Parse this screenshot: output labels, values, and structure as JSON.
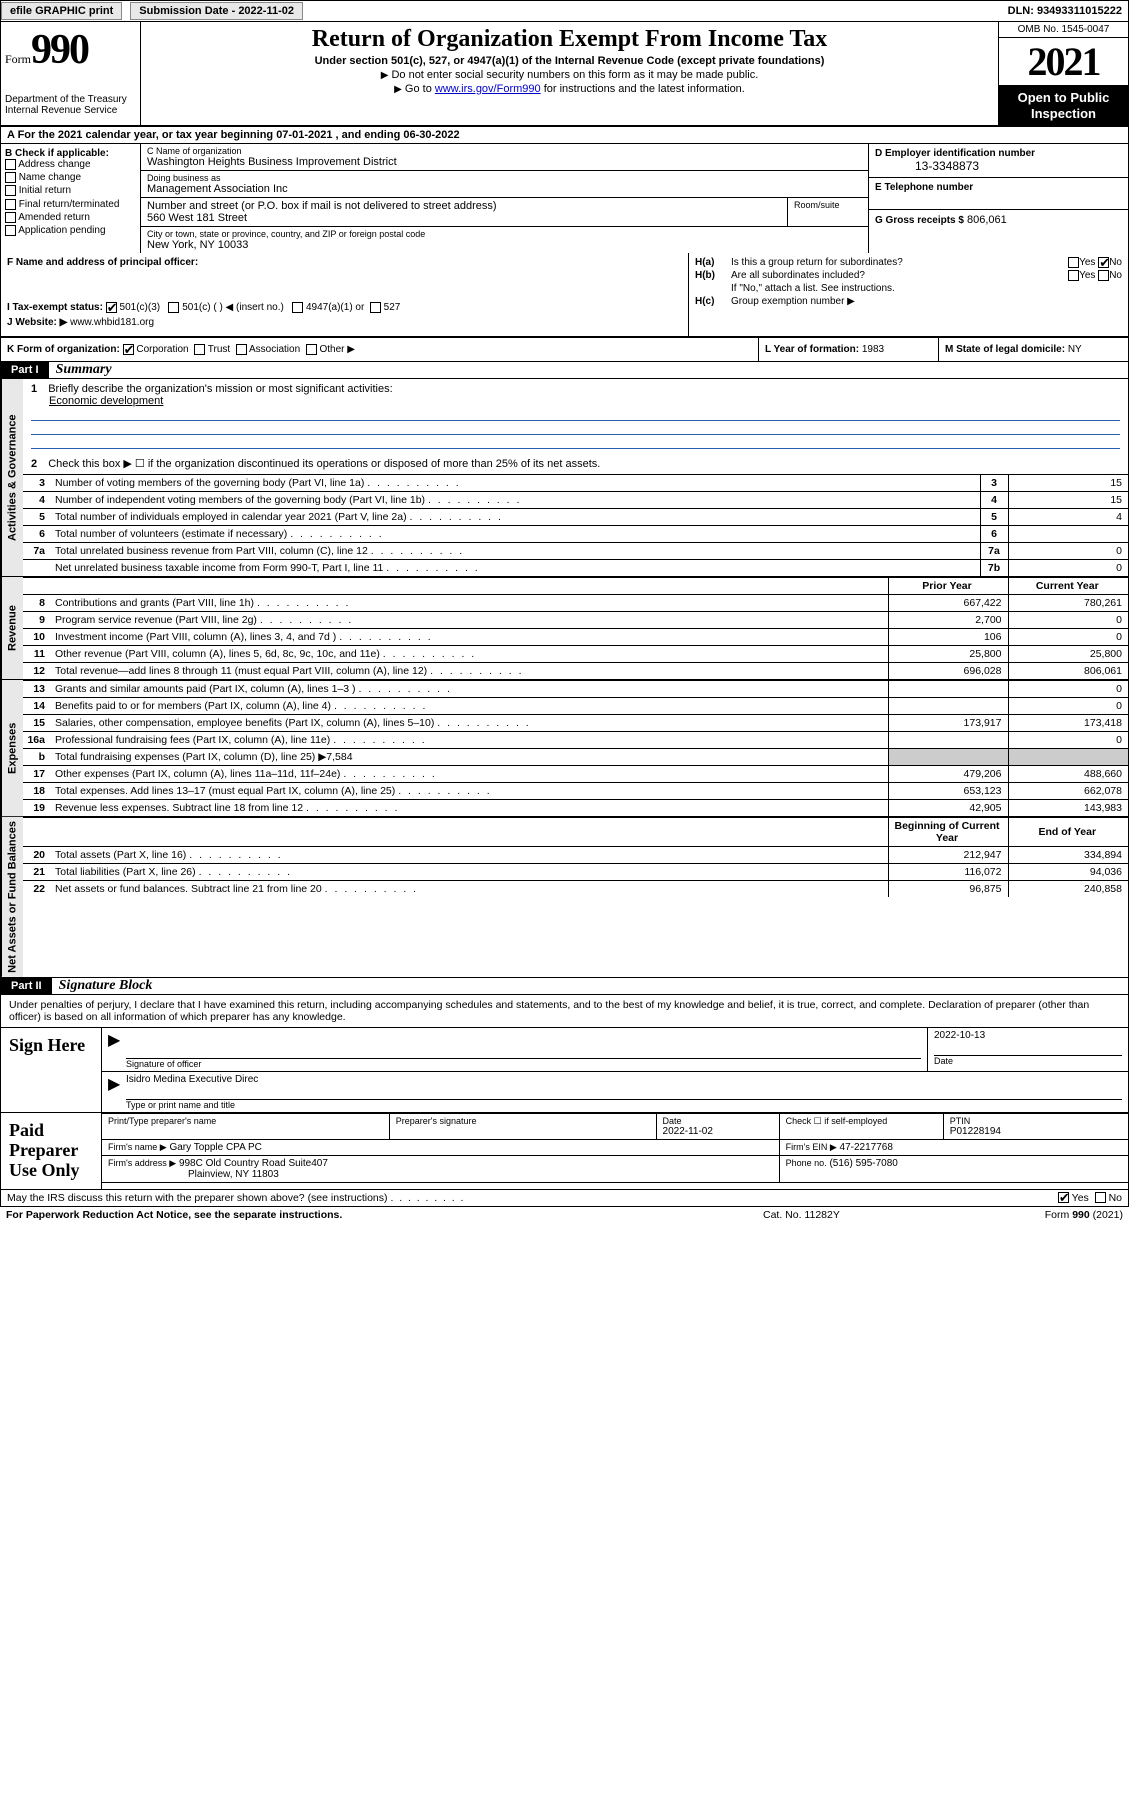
{
  "topbar": {
    "efile": "efile GRAPHIC print",
    "sub_date_lbl": "Submission Date - 2022-11-02",
    "dln": "DLN: 93493311015222"
  },
  "header": {
    "form_prefix": "Form",
    "form_num": "990",
    "dept": "Department of the Treasury",
    "irs": "Internal Revenue Service",
    "title": "Return of Organization Exempt From Income Tax",
    "sub": "Under section 501(c), 527, or 4947(a)(1) of the Internal Revenue Code (except private foundations)",
    "note1": "Do not enter social security numbers on this form as it may be made public.",
    "note2_a": "Go to ",
    "note2_link": "www.irs.gov/Form990",
    "note2_b": " for instructions and the latest information.",
    "omb": "OMB No. 1545-0047",
    "year": "2021",
    "open_pub_1": "Open to Public",
    "open_pub_2": "Inspection"
  },
  "rowA": "A For the 2021 calendar year, or tax year beginning 07-01-2021   , and ending 06-30-2022",
  "sectionB": {
    "lead": "B Check if applicable:",
    "opts": [
      "Address change",
      "Name change",
      "Initial return",
      "Final return/terminated",
      "Amended return",
      "Application pending"
    ]
  },
  "sectionC": {
    "name_lab": "C Name of organization",
    "name": "Washington Heights Business Improvement District",
    "dba_lab": "Doing business as",
    "dba": "Management Association Inc",
    "street_lab": "Number and street (or P.O. box if mail is not delivered to street address)",
    "street": "560 West 181 Street",
    "room_lab": "Room/suite",
    "city_lab": "City or town, state or province, country, and ZIP or foreign postal code",
    "city": "New York, NY  10033"
  },
  "sectionDE": {
    "d_lab": "D Employer identification number",
    "d_val": "13-3348873",
    "e_lab": "E Telephone number",
    "g_lab": "G Gross receipts $",
    "g_val": "806,061"
  },
  "sectionF": {
    "f_lab": "F  Name and address of principal officer:",
    "i_lab": "I   Tax-exempt status:",
    "i_501c3": "501(c)(3)",
    "i_501c": "501(c) (  ) ◀ (insert no.)",
    "i_4947": "4947(a)(1) or",
    "i_527": "527",
    "j_lab": "J   Website: ▶",
    "j_val": "www.whbid181.org"
  },
  "sectionH": {
    "ha_k": "H(a)",
    "ha_t": "Is this a group return for subordinates?",
    "hb_k": "H(b)",
    "hb_t": "Are all subordinates included?",
    "hb_note": "If \"No,\" attach a list. See instructions.",
    "hc_k": "H(c)",
    "hc_t": "Group exemption number ▶",
    "yes": "Yes",
    "no": "No"
  },
  "klm": {
    "k": "K Form of organization:",
    "k_corp": "Corporation",
    "k_trust": "Trust",
    "k_assoc": "Association",
    "k_other": "Other ▶",
    "l_lab": "L Year of formation:",
    "l_val": "1983",
    "m_lab": "M State of legal domicile:",
    "m_val": "NY"
  },
  "partI": {
    "hd": "Part I",
    "title": "Summary",
    "q1_num": "1",
    "q1": "Briefly describe the organization's mission or most significant activities:",
    "q1_val": "Economic development",
    "q2_num": "2",
    "q2": "Check this box ▶ ☐ if the organization discontinued its operations or disposed of more than 25% of its net assets.",
    "vtab_gov": "Activities & Governance",
    "vtab_rev": "Revenue",
    "vtab_exp": "Expenses",
    "vtab_net": "Net Assets or Fund Balances",
    "col_prior": "Prior Year",
    "col_curr": "Current Year",
    "col_beg": "Beginning of Current Year",
    "col_end": "End of Year",
    "rows_gov": [
      {
        "n": "3",
        "t": "Number of voting members of the governing body (Part VI, line 1a)",
        "idx": "3",
        "v": "15"
      },
      {
        "n": "4",
        "t": "Number of independent voting members of the governing body (Part VI, line 1b)",
        "idx": "4",
        "v": "15"
      },
      {
        "n": "5",
        "t": "Total number of individuals employed in calendar year 2021 (Part V, line 2a)",
        "idx": "5",
        "v": "4"
      },
      {
        "n": "6",
        "t": "Total number of volunteers (estimate if necessary)",
        "idx": "6",
        "v": ""
      },
      {
        "n": "7a",
        "t": "Total unrelated business revenue from Part VIII, column (C), line 12",
        "idx": "7a",
        "v": "0"
      },
      {
        "n": "",
        "t": "Net unrelated business taxable income from Form 990-T, Part I, line 11",
        "idx": "7b",
        "v": "0"
      }
    ],
    "rows_rev": [
      {
        "n": "8",
        "t": "Contributions and grants (Part VIII, line 1h)",
        "pv": "667,422",
        "cv": "780,261"
      },
      {
        "n": "9",
        "t": "Program service revenue (Part VIII, line 2g)",
        "pv": "2,700",
        "cv": "0"
      },
      {
        "n": "10",
        "t": "Investment income (Part VIII, column (A), lines 3, 4, and 7d )",
        "pv": "106",
        "cv": "0"
      },
      {
        "n": "11",
        "t": "Other revenue (Part VIII, column (A), lines 5, 6d, 8c, 9c, 10c, and 11e)",
        "pv": "25,800",
        "cv": "25,800"
      },
      {
        "n": "12",
        "t": "Total revenue—add lines 8 through 11 (must equal Part VIII, column (A), line 12)",
        "pv": "696,028",
        "cv": "806,061"
      }
    ],
    "rows_exp": [
      {
        "n": "13",
        "t": "Grants and similar amounts paid (Part IX, column (A), lines 1–3 )",
        "pv": "",
        "cv": "0"
      },
      {
        "n": "14",
        "t": "Benefits paid to or for members (Part IX, column (A), line 4)",
        "pv": "",
        "cv": "0"
      },
      {
        "n": "15",
        "t": "Salaries, other compensation, employee benefits (Part IX, column (A), lines 5–10)",
        "pv": "173,917",
        "cv": "173,418"
      },
      {
        "n": "16a",
        "t": "Professional fundraising fees (Part IX, column (A), line 11e)",
        "pv": "",
        "cv": "0"
      },
      {
        "n": "b",
        "t": "Total fundraising expenses (Part IX, column (D), line 25) ▶7,584",
        "pv": "SHADE",
        "cv": "SHADE"
      },
      {
        "n": "17",
        "t": "Other expenses (Part IX, column (A), lines 11a–11d, 11f–24e)",
        "pv": "479,206",
        "cv": "488,660"
      },
      {
        "n": "18",
        "t": "Total expenses. Add lines 13–17 (must equal Part IX, column (A), line 25)",
        "pv": "653,123",
        "cv": "662,078"
      },
      {
        "n": "19",
        "t": "Revenue less expenses. Subtract line 18 from line 12",
        "pv": "42,905",
        "cv": "143,983"
      }
    ],
    "rows_net": [
      {
        "n": "20",
        "t": "Total assets (Part X, line 16)",
        "pv": "212,947",
        "cv": "334,894"
      },
      {
        "n": "21",
        "t": "Total liabilities (Part X, line 26)",
        "pv": "116,072",
        "cv": "94,036"
      },
      {
        "n": "22",
        "t": "Net assets or fund balances. Subtract line 21 from line 20",
        "pv": "96,875",
        "cv": "240,858"
      }
    ]
  },
  "partII": {
    "hd": "Part II",
    "title": "Signature Block",
    "intro": "Under penalties of perjury, I declare that I have examined this return, including accompanying schedules and statements, and to the best of my knowledge and belief, it is true, correct, and complete. Declaration of preparer (other than officer) is based on all information of which preparer has any knowledge.",
    "sign_here": "Sign Here",
    "sig_officer_lab": "Signature of officer",
    "sig_date_lab": "Date",
    "sig_date": "2022-10-13",
    "officer_name": "Isidro Medina  Executive Direc",
    "type_name_lab": "Type or print name and title",
    "paid_prep": "Paid Preparer Use Only",
    "pp_name_lab": "Print/Type preparer's name",
    "pp_sig_lab": "Preparer's signature",
    "pp_date_lab": "Date",
    "pp_date": "2022-11-02",
    "pp_check_lab": "Check ☐ if self-employed",
    "pp_ptin_lab": "PTIN",
    "pp_ptin": "P01228194",
    "firm_name_lab": "Firm's name   ▶",
    "firm_name": "Gary Topple CPA PC",
    "firm_ein_lab": "Firm's EIN ▶",
    "firm_ein": "47-2217768",
    "firm_addr_lab": "Firm's address ▶",
    "firm_addr1": "998C Old Country Road Suite407",
    "firm_addr2": "Plainview, NY  11803",
    "phone_lab": "Phone no.",
    "phone": "(516) 595-7080",
    "irs_discuss": "May the IRS discuss this return with the preparer shown above? (see instructions)",
    "yes": "Yes",
    "no": "No"
  },
  "footer": {
    "l": "For Paperwork Reduction Act Notice, see the separate instructions.",
    "c": "Cat. No. 11282Y",
    "r_a": "Form ",
    "r_b": "990",
    "r_c": " (2021)"
  }
}
